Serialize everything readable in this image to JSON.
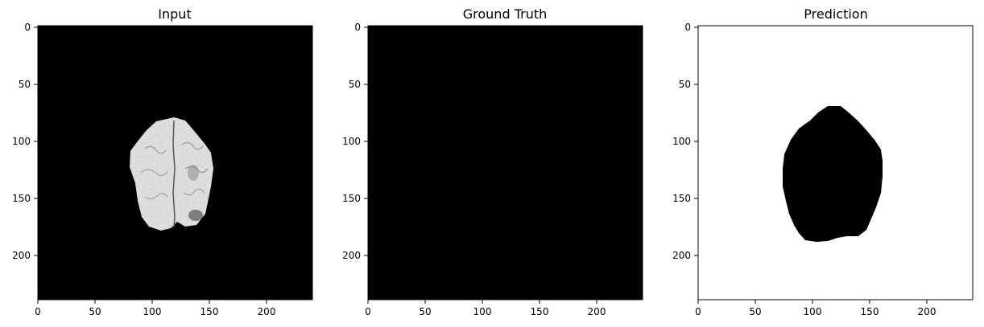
{
  "panels": [
    {
      "title": "Input",
      "x_ticks": [
        "0",
        "50",
        "100",
        "150",
        "200"
      ],
      "y_ticks": [
        "0",
        "50",
        "100",
        "150",
        "200"
      ],
      "background": "#000000",
      "content": "grayscale brain MRI slice"
    },
    {
      "title": "Ground Truth",
      "x_ticks": [
        "0",
        "50",
        "100",
        "150",
        "200"
      ],
      "y_ticks": [
        "0",
        "50",
        "100",
        "150",
        "200"
      ],
      "background": "#000000",
      "content": "empty mask"
    },
    {
      "title": "Prediction",
      "x_ticks": [
        "0",
        "50",
        "100",
        "150",
        "200"
      ],
      "y_ticks": [
        "0",
        "50",
        "100",
        "150",
        "200"
      ],
      "background": "#ffffff",
      "content": "black region on white background"
    }
  ]
}
